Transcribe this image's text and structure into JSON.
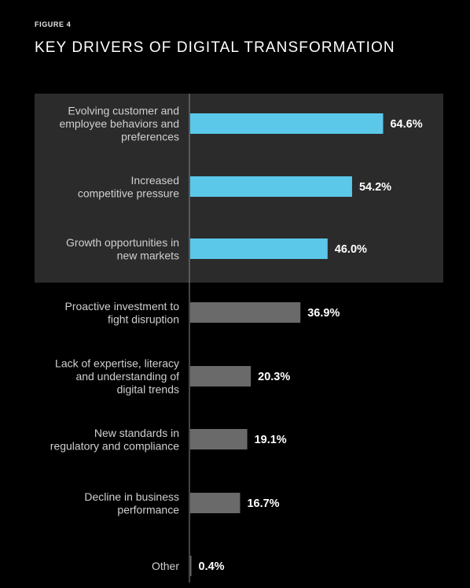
{
  "header": {
    "figure_label": "FIGURE 4",
    "title": "KEY DRIVERS OF DIGITAL TRANSFORMATION"
  },
  "colors": {
    "background": "#000000",
    "highlight_panel": "#2b2b2b",
    "highlight_bar": "#5bc8ea",
    "other_bar": "#6a6a6a",
    "axis": "#8a8a8a"
  },
  "chart_data": {
    "type": "bar",
    "orientation": "horizontal",
    "title": "KEY DRIVERS OF DIGITAL TRANSFORMATION",
    "xlabel": "",
    "ylabel": "",
    "grid": false,
    "highlighted_count": 3,
    "categories": [
      [
        "Evolving customer and",
        "employee behaviors and",
        "preferences"
      ],
      [
        "Increased",
        "competitive pressure"
      ],
      [
        "Growth opportunities in",
        "new markets"
      ],
      [
        "Proactive investment to",
        "fight disruption"
      ],
      [
        "Lack of expertise, literacy",
        "and understanding of",
        "digital trends"
      ],
      [
        "New standards in",
        "regulatory and compliance"
      ],
      [
        "Decline in business",
        "performance"
      ],
      [
        "Other"
      ]
    ],
    "values": [
      64.6,
      54.2,
      46.0,
      36.9,
      20.3,
      19.1,
      16.7,
      0.4
    ],
    "value_labels": [
      "64.6%",
      "54.2%",
      "46.0%",
      "36.9%",
      "20.3%",
      "19.1%",
      "16.7%",
      "0.4%"
    ]
  }
}
